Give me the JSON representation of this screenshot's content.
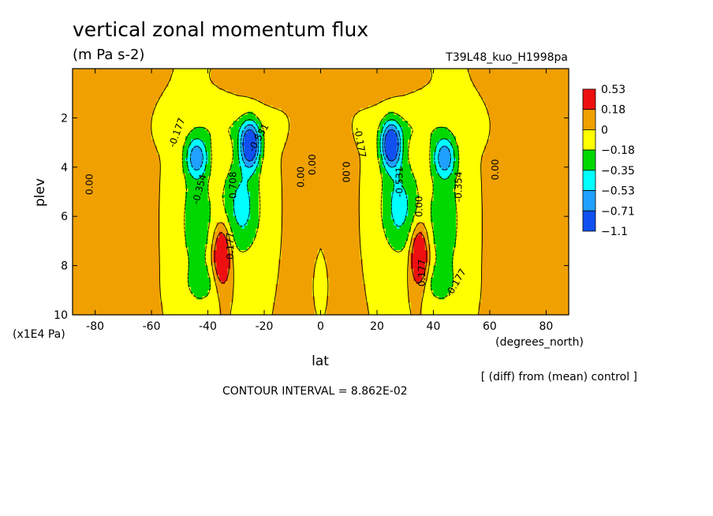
{
  "chart_data": {
    "type": "heatmap",
    "title": "vertical zonal momentum flux",
    "units": "(m Pa s-2)",
    "run_label": "T39L48_kuo_H1998pa",
    "xlabel": "lat",
    "x_units": "(degrees_north)",
    "ylabel": "plev",
    "y_units": "(x1E4 Pa)",
    "xlim": [
      -88,
      88
    ],
    "ylim": [
      10,
      0
    ],
    "x_ticks": [
      -80,
      -60,
      -40,
      -20,
      0,
      20,
      40,
      60,
      80
    ],
    "y_ticks": [
      2,
      4,
      6,
      8,
      10
    ],
    "diff_note": "[ (diff) from (mean) control ]",
    "contour_interval": "CONTOUR INTERVAL = 8.862E-02",
    "colorbar": {
      "labels": [
        "0.53",
        "0.18",
        "0",
        "−0.18",
        "−0.35",
        "−0.53",
        "−0.71",
        "−1.1"
      ],
      "colors": [
        "#ee1010",
        "#f0a000",
        "#ffff00",
        "#00d800",
        "#00ffff",
        "#20a0ff",
        "#1050f0"
      ],
      "class_upper_bounds": [
        0.53,
        0.18,
        0.0,
        -0.18,
        -0.35,
        -0.53,
        -0.71
      ]
    },
    "features": [
      {
        "lat": -35,
        "plev": 7.6,
        "value": 0.53,
        "note": "positive max"
      },
      {
        "lat": 35,
        "plev": 7.6,
        "value": 0.53,
        "note": "positive max"
      },
      {
        "lat": -25,
        "plev": 3.3,
        "value": -1.0,
        "note": "negative min"
      },
      {
        "lat": 25,
        "plev": 3.1,
        "value": -1.0,
        "note": "negative min"
      },
      {
        "lat": -44,
        "plev": 3.6,
        "value": -0.6,
        "note": "negative lobe"
      },
      {
        "lat": 44,
        "plev": 3.6,
        "value": -0.6,
        "note": "negative lobe"
      },
      {
        "lat": -75,
        "plev": 5.5,
        "value": 0.1,
        "note": "weak positive"
      },
      {
        "lat": 75,
        "plev": 5.5,
        "value": 0.1,
        "note": "weak positive"
      }
    ],
    "contour_labels": [
      {
        "text": "0.00",
        "lat": -82,
        "plev": 4.7,
        "rot": -90
      },
      {
        "text": "-0.177",
        "lat": -51,
        "plev": 2.6,
        "rot": -70
      },
      {
        "text": "-0.354",
        "lat": -43,
        "plev": 4.9,
        "rot": -75
      },
      {
        "text": "-0.708",
        "lat": -31,
        "plev": 4.8,
        "rot": -90
      },
      {
        "text": "-0.531",
        "lat": -22,
        "plev": 2.8,
        "rot": -60
      },
      {
        "text": "0.177",
        "lat": -32,
        "plev": 7.2,
        "rot": -90
      },
      {
        "text": "0.00",
        "lat": -7,
        "plev": 4.4,
        "rot": -90
      },
      {
        "text": "0.00",
        "lat": -3,
        "plev": 3.9,
        "rot": -90
      },
      {
        "text": "0.00",
        "lat": 9,
        "plev": 4.2,
        "rot": 90
      },
      {
        "text": "-0.177",
        "lat": 14,
        "plev": 3.0,
        "rot": 80
      },
      {
        "text": "-0.531",
        "lat": 28,
        "plev": 4.6,
        "rot": -90
      },
      {
        "text": "0.00",
        "lat": 35,
        "plev": 5.6,
        "rot": -90
      },
      {
        "text": "0.177",
        "lat": 36,
        "plev": 8.3,
        "rot": -90
      },
      {
        "text": "-0.177",
        "lat": 48,
        "plev": 8.7,
        "rot": -60
      },
      {
        "text": "-0.354",
        "lat": 49,
        "plev": 4.8,
        "rot": -90
      },
      {
        "text": "0.00",
        "lat": 62,
        "plev": 4.1,
        "rot": -90
      }
    ]
  }
}
